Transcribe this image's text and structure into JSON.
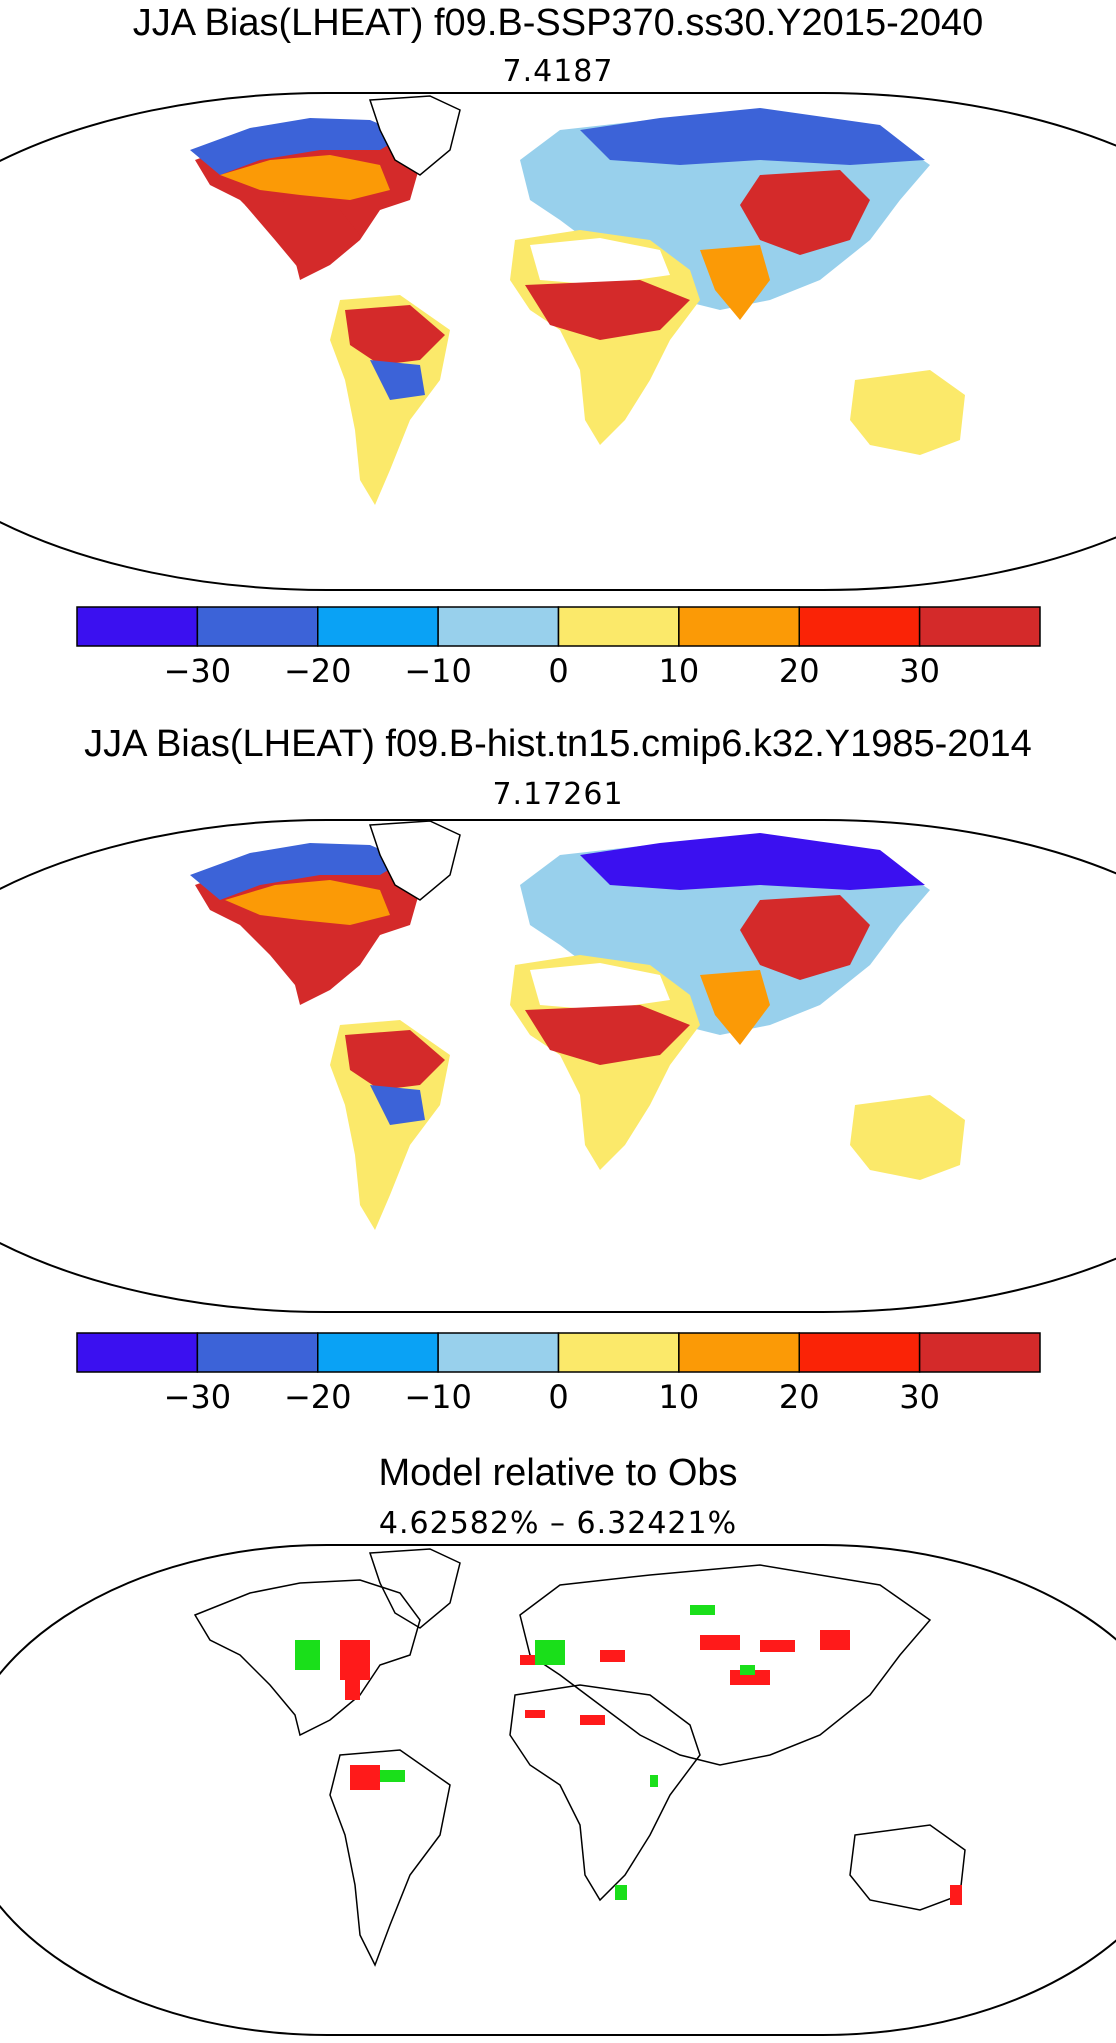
{
  "panels": [
    {
      "title": "JJA Bias(LHEAT) f09.B-SSP370.ss30.Y2015-2040",
      "subtitle": "7.4187",
      "kind": "bias"
    },
    {
      "title": "JJA Bias(LHEAT) f09.B-hist.tn15.cmip6.k32.Y1985-2014",
      "subtitle": "7.17261",
      "kind": "bias"
    },
    {
      "title": "Model relative to Obs",
      "subtitle": "4.62582% – 6.32421%",
      "kind": "significance"
    }
  ],
  "colorbar": {
    "colors": [
      "#3b10f0",
      "#3c63d8",
      "#0aa2f5",
      "#98d0ec",
      "#fbe96a",
      "#fb9a06",
      "#fa2306",
      "#d42a2a"
    ],
    "tick_labels": [
      "−30",
      "−20",
      "−10",
      "0",
      "10",
      "20",
      "30"
    ]
  },
  "significance_colors": {
    "positive": "#ff1a1a",
    "negative": "#1adf1a"
  }
}
